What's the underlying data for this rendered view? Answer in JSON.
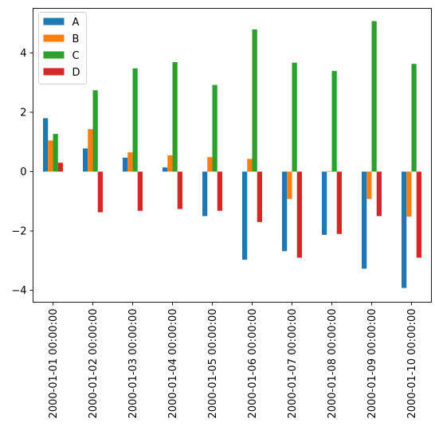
{
  "chart_data": {
    "type": "bar",
    "categories": [
      "2000-01-01 00:00:00",
      "2000-01-02 00:00:00",
      "2000-01-03 00:00:00",
      "2000-01-04 00:00:00",
      "2000-01-05 00:00:00",
      "2000-01-06 00:00:00",
      "2000-01-07 00:00:00",
      "2000-01-08 00:00:00",
      "2000-01-09 00:00:00",
      "2000-01-10 00:00:00"
    ],
    "series": [
      {
        "name": "A",
        "color": "#1f77b4",
        "values": [
          1.8,
          0.78,
          0.47,
          0.14,
          -1.5,
          -2.97,
          -2.68,
          -2.13,
          -3.27,
          -3.92
        ]
      },
      {
        "name": "B",
        "color": "#ff7f0e",
        "values": [
          1.05,
          1.43,
          0.65,
          0.55,
          0.49,
          0.43,
          -0.92,
          0.02,
          -0.92,
          -1.52
        ]
      },
      {
        "name": "C",
        "color": "#2ca02c",
        "values": [
          1.27,
          2.74,
          3.48,
          3.69,
          2.92,
          4.79,
          3.67,
          3.39,
          5.07,
          3.63
        ]
      },
      {
        "name": "D",
        "color": "#d62728",
        "values": [
          0.3,
          -1.37,
          -1.32,
          -1.26,
          -1.32,
          -1.7,
          -2.9,
          -2.1,
          -1.5,
          -2.9
        ]
      }
    ],
    "title": "",
    "xlabel": "",
    "ylabel": "",
    "ylim": [
      -4.4,
      5.5
    ],
    "yticks": [
      -4,
      -2,
      0,
      2,
      4
    ],
    "ytick_labels": [
      "−4",
      "−2",
      "0",
      "2",
      "4"
    ],
    "grid": false,
    "legend_position": "top-left"
  }
}
